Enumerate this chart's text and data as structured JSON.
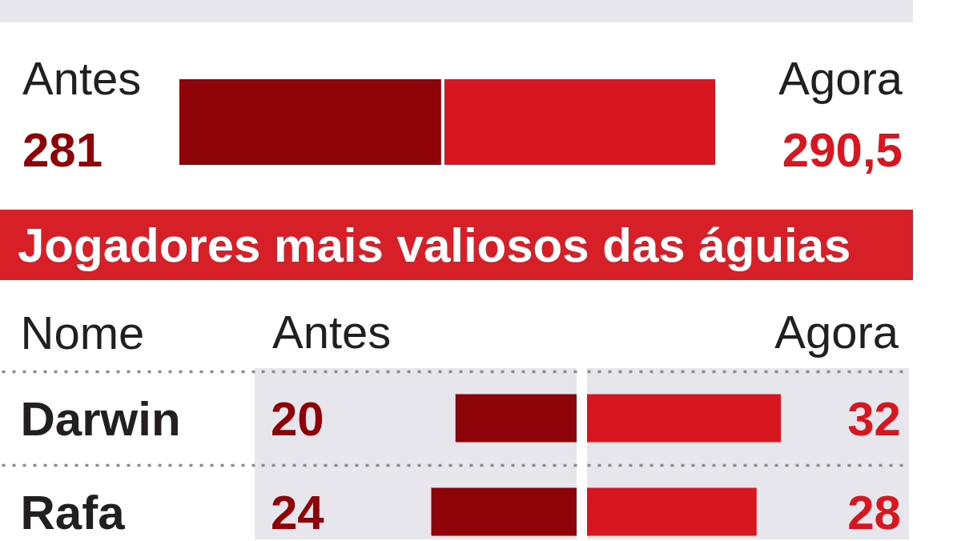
{
  "chart_data": [
    {
      "type": "bar",
      "orientation": "horizontal",
      "stacked": true,
      "categories": [
        null
      ],
      "series": [
        {
          "name": "Antes",
          "color": "#8e0308",
          "values": [
            281
          ],
          "value_labels": [
            "281"
          ]
        },
        {
          "name": "Agora",
          "color": "#d8161f",
          "values": [
            290.5
          ],
          "value_labels": [
            "290,5"
          ]
        }
      ]
    },
    {
      "type": "bar",
      "orientation": "horizontal",
      "title": "Jogadores mais valiosos das águias",
      "ylabel": "Nome",
      "categories": [
        "Darwin",
        "Rafa"
      ],
      "series": [
        {
          "name": "Antes",
          "color": "#8e0308",
          "values": [
            20,
            24
          ]
        }
      ],
      "data_labels": true,
      "tick_labels": "y",
      "grid": "y"
    },
    {
      "type": "bar",
      "orientation": "horizontal",
      "categories": [
        null,
        null
      ],
      "series": [
        {
          "name": "Agora",
          "color": "#d8161f",
          "values": [
            32,
            28
          ]
        }
      ],
      "data_labels": true,
      "grid": "y"
    }
  ]
}
